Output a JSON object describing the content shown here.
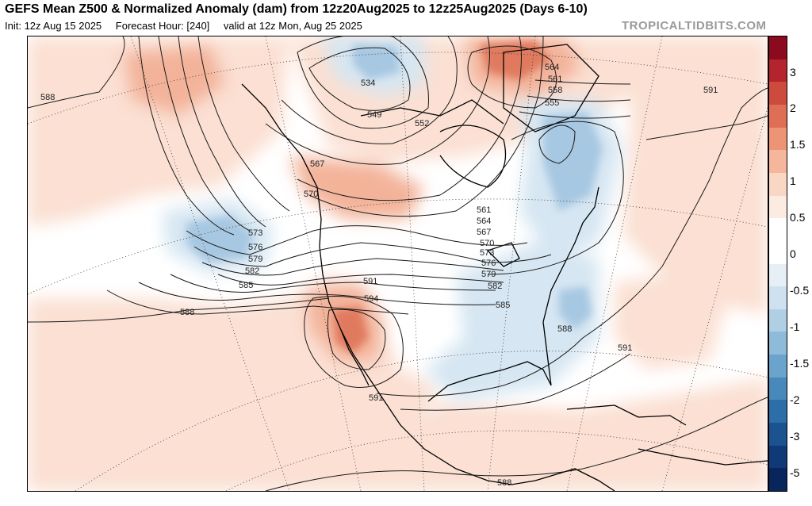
{
  "header": {
    "title": "GEFS Mean Z500 & Normalized Anomaly (dam) from 12z20Aug2025 to 12z25Aug2025 (Days 6-10)",
    "init": "Init: 12z Aug 15 2025",
    "forecast_hour": "Forecast Hour: [240]",
    "valid": "valid at 12z Mon, Aug 25 2025",
    "brand": "TROPICALTIDBITS.COM"
  },
  "colorbar": {
    "labels": [
      "3",
      "2",
      "1.5",
      "1",
      "0.5",
      "0",
      "-0.5",
      "-1",
      "-1.5",
      "-2",
      "-3",
      "-5"
    ],
    "colors": [
      "#8b0a1e",
      "#b3242d",
      "#cd4b3d",
      "#de6f55",
      "#ec9474",
      "#f5b69c",
      "#fad6c4",
      "#fcebe1",
      "#ffffff",
      "#ffffff",
      "#e6eff6",
      "#cfe1ee",
      "#b0cfe4",
      "#8ebbd9",
      "#6aa3cc",
      "#4789bb",
      "#2c6ea7",
      "#1b5290",
      "#0f3a77",
      "#08255c"
    ]
  },
  "contours": {
    "labels": [
      "588",
      "534",
      "549",
      "552",
      "564",
      "561",
      "558",
      "555",
      "591",
      "567",
      "570",
      "573",
      "576",
      "579",
      "582",
      "585",
      "588",
      "591",
      "594",
      "561",
      "564",
      "567",
      "570",
      "573",
      "576",
      "579",
      "582",
      "585",
      "588",
      "591",
      "591",
      "588"
    ]
  },
  "colors": {
    "contour": "#1a1a1a",
    "warm_light": "#fbe0d3",
    "warm_mid": "#f3b39a",
    "warm_strong": "#e07a5f",
    "cool_light": "#d6e6f2",
    "cool_mid": "#a7c8e2",
    "cool_strong": "#6e9fcb"
  }
}
